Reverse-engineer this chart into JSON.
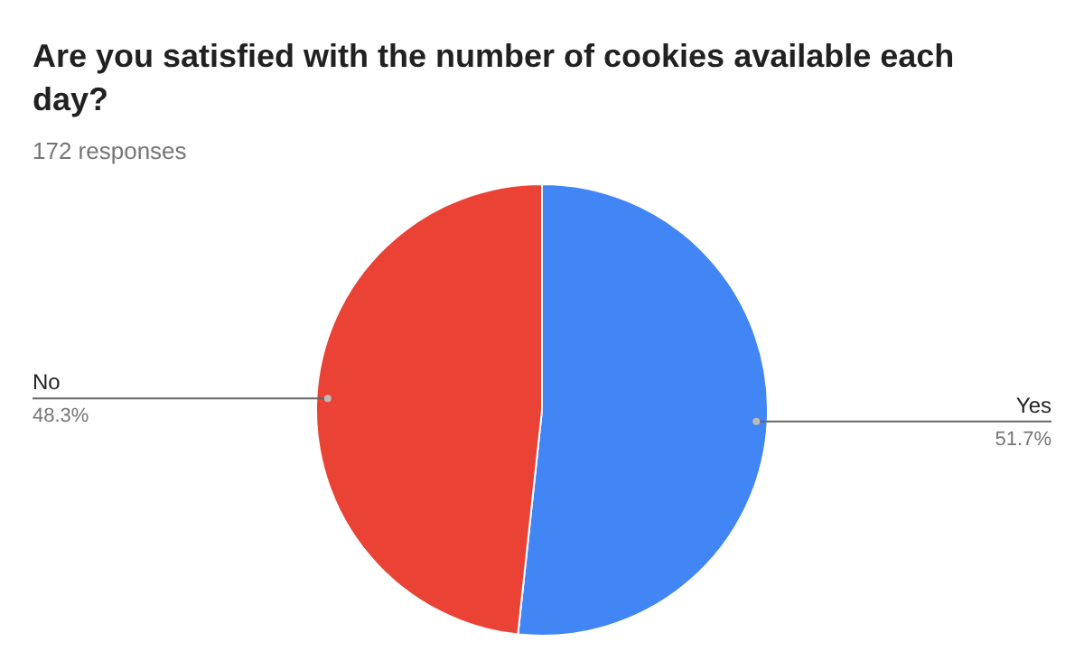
{
  "chart_data": {
    "type": "pie",
    "title": "Are you satisfied with the number of cookies available each day?",
    "subtitle": "172 responses",
    "categories": [
      "Yes",
      "No"
    ],
    "values": [
      51.7,
      48.3
    ],
    "colors": [
      "#4285f4",
      "#ea4335"
    ],
    "value_labels": [
      "51.7%",
      "48.3%"
    ]
  }
}
